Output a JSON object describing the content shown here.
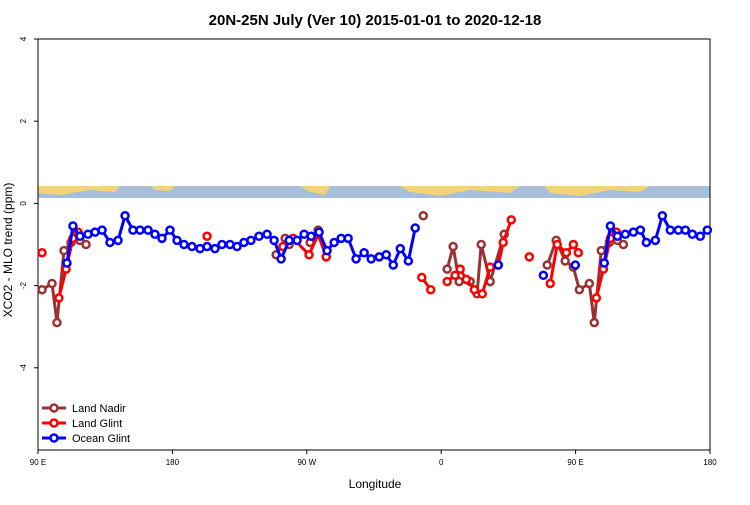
{
  "chart_data": {
    "type": "line",
    "title": "20N-25N July (Ver 10)   2015-01-01 to 2020-12-18",
    "x_label": "Longitude",
    "y_label": "XCO2 - MLO trend (ppm)",
    "xlim": [
      90,
      540
    ],
    "ylim": [
      -6,
      4
    ],
    "xticks": [
      {
        "value": 90,
        "label": "90 E"
      },
      180,
      {
        "value": 270,
        "label": "90 W"
      },
      {
        "value": 360,
        "label": "0"
      },
      {
        "value": 450,
        "label": "90 E"
      },
      {
        "value": 540,
        "label": "180"
      }
    ],
    "yticks": [
      -4,
      -2,
      0,
      2,
      4
    ],
    "legend": "lower left",
    "series": [
      {
        "name": "Land Nadir",
        "color": "#993333",
        "x": [
          92.7,
          99.4,
          102.7,
          107.4,
          112.1,
          114.8,
          118.1,
          122.2,
          null,
          249.5,
          255.5,
          258.2,
          null,
          272.2,
          277.6,
          283,
          null,
          348,
          null,
          364,
          368,
          372,
          379.4,
          384,
          386.8,
          392.8,
          402.2,
          null,
          431,
          437,
          443,
          448.5,
          452.5,
          459.2,
          462.5,
          467.2,
          472.6,
          475.3,
          478,
          482
        ],
        "values": [
          -2.1,
          -1.95,
          -2.9,
          -1.15,
          -0.95,
          -0.75,
          -0.9,
          -1.0,
          null,
          -1.25,
          -0.85,
          -1.0,
          null,
          -0.95,
          -0.65,
          -1.3,
          null,
          -0.3,
          null,
          -1.6,
          -1.05,
          -1.9,
          -1.9,
          -2.2,
          -1.0,
          -1.9,
          -0.75,
          null,
          -1.5,
          -0.9,
          -1.4,
          -1.55,
          -2.1,
          -1.95,
          -2.9,
          -1.15,
          -0.95,
          -0.75,
          -0.9,
          -1.0
        ]
      },
      {
        "name": "Land Glint",
        "color": "#ff0000",
        "x": [
          92.7,
          null,
          104,
          108.8,
          113.4,
          116.8,
          null,
          203.2,
          null,
          254,
          260.8,
          271.5,
          277.6,
          283,
          null,
          347,
          353,
          null,
          364,
          369.3,
          372.7,
          376.8,
          382.2,
          387.5,
          392.8,
          398.2,
          401.5,
          406.9,
          null,
          419,
          null,
          433,
          437.7,
          443.8,
          448.5,
          451.8,
          null,
          463.9,
          468.6,
          473.3,
          477.3
        ],
        "values": [
          -1.2,
          null,
          -2.3,
          -1.6,
          -0.85,
          -0.7,
          null,
          -0.8,
          null,
          -1.05,
          -0.85,
          -1.25,
          -0.75,
          -1.3,
          null,
          -1.8,
          -2.1,
          null,
          -1.9,
          -1.75,
          -1.6,
          -1.85,
          -2.1,
          -2.2,
          -1.55,
          -1.5,
          -0.95,
          -0.4,
          null,
          -1.3,
          null,
          -1.95,
          -1.0,
          -1.2,
          -1.0,
          -1.2,
          null,
          -2.3,
          -1.6,
          -0.85,
          -0.7
        ]
      },
      {
        "name": "Ocean Glint",
        "color": "#0000ff",
        "x": [
          109.4,
          113.4,
          118.1,
          123.5,
          128.2,
          132.9,
          138.2,
          143.6,
          148.3,
          153.6,
          158.3,
          163.7,
          168.3,
          173,
          178.4,
          183.1,
          187.8,
          193.1,
          198.5,
          203.2,
          208.5,
          213.2,
          218.6,
          223.3,
          227.9,
          232.6,
          238,
          243.4,
          248.1,
          252.8,
          258.2,
          263.5,
          268.2,
          272.9,
          278.2,
          283.6,
          288.3,
          293,
          297.7,
          303,
          308.4,
          313.1,
          318.5,
          323.2,
          327.9,
          332.6,
          338,
          342.6,
          null,
          398.2,
          null,
          428.4,
          null,
          449.8,
          null,
          469.2,
          473.3,
          478,
          483.3,
          488.7,
          493.4,
          497.4,
          503.4,
          508.1,
          513.4,
          518.8,
          523.5,
          528.2,
          533.5,
          538.2
        ],
        "values": [
          -1.45,
          -0.55,
          -0.8,
          -0.75,
          -0.7,
          -0.65,
          -0.95,
          -0.9,
          -0.3,
          -0.65,
          -0.65,
          -0.65,
          -0.75,
          -0.85,
          -0.65,
          -0.9,
          -1.0,
          -1.05,
          -1.1,
          -1.05,
          -1.1,
          -1.0,
          -1.0,
          -1.05,
          -0.95,
          -0.9,
          -0.8,
          -0.75,
          -0.9,
          -1.35,
          -0.9,
          -0.9,
          -0.75,
          -0.8,
          -0.7,
          -1.15,
          -0.95,
          -0.85,
          -0.85,
          -1.35,
          -1.2,
          -1.35,
          -1.3,
          -1.25,
          -1.5,
          -1.1,
          -1.4,
          -0.6,
          null,
          -1.5,
          null,
          -1.75,
          null,
          -1.5,
          null,
          -1.45,
          -0.55,
          -0.8,
          -0.75,
          -0.7,
          -0.65,
          -0.95,
          -0.9,
          -0.3,
          -0.65,
          -0.65,
          -0.65,
          -0.75,
          -0.8,
          -0.65
        ]
      }
    ]
  }
}
